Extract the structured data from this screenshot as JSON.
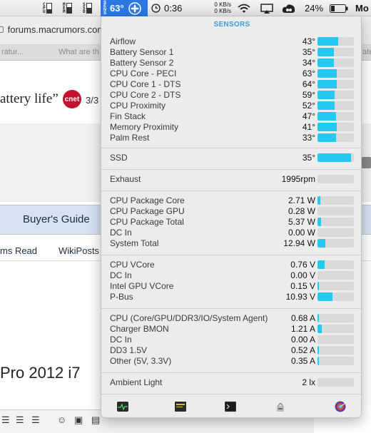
{
  "menubar": {
    "meters": [
      {
        "label": "CPU",
        "level": 0.35
      },
      {
        "label": "MEM",
        "level": 0.6
      },
      {
        "label": "SSD",
        "level": 0.5
      }
    ],
    "sensor_label": "SENS",
    "temp": "63°",
    "clock": "0:36",
    "net_up": "0 KB/s",
    "net_down": "0 KB/s",
    "battery": "24%",
    "user_menu": "Mo"
  },
  "browser": {
    "url": "forums.macrumors.com",
    "tabs": [
      "ratur...",
      "What are th",
      "ate"
    ],
    "headline": "attery life”",
    "cnet": "cnet",
    "page_indicator": "3/3",
    "nav_buyers_guide": "Buyer's Guide",
    "subnav_read": "ms Read",
    "subnav_wikiposts": "WikiPosts",
    "thread_title": "Pro 2012 i7"
  },
  "panel": {
    "title": "SENSORS",
    "temperature_sensors": [
      {
        "name": "Airflow",
        "value": "43°",
        "level": 0.56
      },
      {
        "name": "Battery Sensor 1",
        "value": "35°",
        "level": 0.46
      },
      {
        "name": "Battery Sensor 2",
        "value": "34°",
        "level": 0.45
      },
      {
        "name": "CPU Core - PECI",
        "value": "63°",
        "level": 0.52
      },
      {
        "name": "CPU Core 1 - DTS",
        "value": "64°",
        "level": 0.52
      },
      {
        "name": "CPU Core 2 - DTS",
        "value": "59°",
        "level": 0.48
      },
      {
        "name": "CPU Proximity",
        "value": "52°",
        "level": 0.48
      },
      {
        "name": "Fin Stack",
        "value": "47°",
        "level": 0.5
      },
      {
        "name": "Memory Proximity",
        "value": "41°",
        "level": 0.52
      },
      {
        "name": "Palm Rest",
        "value": "33°",
        "level": 0.5
      }
    ],
    "ssd": [
      {
        "name": "SSD",
        "value": "35°",
        "level": 0.92
      }
    ],
    "fans": [
      {
        "name": "Exhaust",
        "value": "1995rpm",
        "level": 0.0
      }
    ],
    "power": [
      {
        "name": "CPU Package Core",
        "value": "2.71 W",
        "level": 0.08
      },
      {
        "name": "CPU Package GPU",
        "value": "0.28 W",
        "level": 0.0
      },
      {
        "name": "CPU Package Total",
        "value": "5.37 W",
        "level": 0.1
      },
      {
        "name": "DC In",
        "value": "0.00 W",
        "level": 0.0
      },
      {
        "name": "System Total",
        "value": "12.94 W",
        "level": 0.22
      }
    ],
    "voltage": [
      {
        "name": "CPU VCore",
        "value": "0.76 V",
        "level": 0.2
      },
      {
        "name": "DC In",
        "value": "0.00 V",
        "level": 0.0
      },
      {
        "name": "Intel GPU VCore",
        "value": "0.15 V",
        "level": 0.04
      },
      {
        "name": "P-Bus",
        "value": "10.93 V",
        "level": 0.42
      }
    ],
    "current": [
      {
        "name": "CPU (Core/GPU/DDR3/IO/System Agent)",
        "value": "0.68 A",
        "level": 0.04
      },
      {
        "name": "Charger BMON",
        "value": "1.21 A",
        "level": 0.12
      },
      {
        "name": "DC In",
        "value": "0.00 A",
        "level": 0.0
      },
      {
        "name": "DD3 1.5V",
        "value": "0.52 A",
        "level": 0.04
      },
      {
        "name": "Other (5V, 3.3V)",
        "value": "0.35 A",
        "level": 0.03
      }
    ],
    "light": [
      {
        "name": "Ambient Light",
        "value": "2 lx",
        "level": 0.0
      }
    ],
    "footer_icons": [
      "activity-monitor-icon",
      "console-icon",
      "terminal-icon",
      "system-information-icon",
      "disk-utility-icon"
    ]
  },
  "colors": {
    "accent": "#3a9fe0",
    "bar_fill": "#23c9f0",
    "bar_track": "#d9d9d9",
    "menubar_temp_bg": "#2b78e4"
  }
}
